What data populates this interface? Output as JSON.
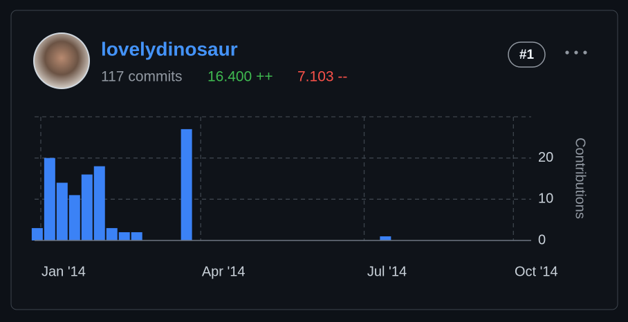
{
  "user": {
    "name": "lovelydinosaur",
    "commits": "117 commits",
    "additions": "16.400 ++",
    "deletions": "7.103 --",
    "rank": "#1"
  },
  "chart_data": {
    "type": "bar",
    "x": [
      -2,
      5,
      12,
      19,
      26,
      33,
      40,
      47,
      54,
      82,
      194
    ],
    "values": [
      3,
      20,
      14,
      11,
      16,
      18,
      3,
      2,
      2,
      27,
      1
    ],
    "color": "#3b82f6",
    "ylabel": "Contributions",
    "xlim": [
      -3.5,
      276
    ],
    "xticks": [
      {
        "value": 0,
        "label": "Jan '14"
      },
      {
        "value": 90,
        "label": "Apr '14"
      },
      {
        "value": 182,
        "label": "Jul '14"
      },
      {
        "value": 266,
        "label": "Oct '14"
      }
    ],
    "ylim": [
      0,
      30
    ],
    "yticks": [
      0,
      10,
      20
    ],
    "grid": true
  }
}
